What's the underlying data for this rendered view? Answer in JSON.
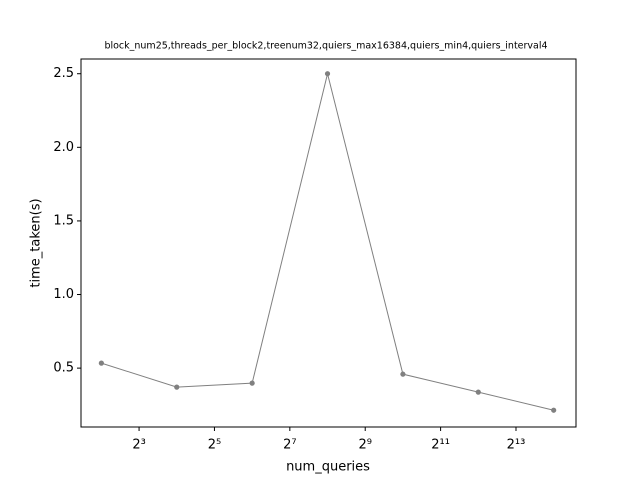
{
  "chart_data": {
    "type": "line",
    "title": "block_num25,threads_per_block2,treenum32,quiers_max16384,quiers_min4,quiers_interval4",
    "x_label": "num_queries",
    "y_label": "time_taken(s)",
    "x": [
      4,
      16,
      64,
      256,
      1024,
      4096,
      16384
    ],
    "series": [
      {
        "color": "#808080",
        "values": [
          0.534,
          0.371,
          0.398,
          2.5,
          0.459,
          0.337,
          0.214
        ]
      }
    ],
    "x_scale": "log2",
    "xlim": [
      2.75,
      24700
    ],
    "xticks": [
      {
        "value": 8,
        "label": "2³"
      },
      {
        "value": 32,
        "label": "2⁵"
      },
      {
        "value": 128,
        "label": "2⁷"
      },
      {
        "value": 512,
        "label": "2⁹"
      },
      {
        "value": 2048,
        "label": "2¹¹"
      },
      {
        "value": 8192,
        "label": "2¹³"
      }
    ],
    "ylim": [
      0.1,
      2.6
    ],
    "yticks": [
      {
        "value": 0.5,
        "label": "0.5"
      },
      {
        "value": 1.0,
        "label": "1.0"
      },
      {
        "value": 1.5,
        "label": "1.5"
      },
      {
        "value": 2.0,
        "label": "2.0"
      },
      {
        "value": 2.5,
        "label": "2.5"
      }
    ],
    "grid": false
  }
}
